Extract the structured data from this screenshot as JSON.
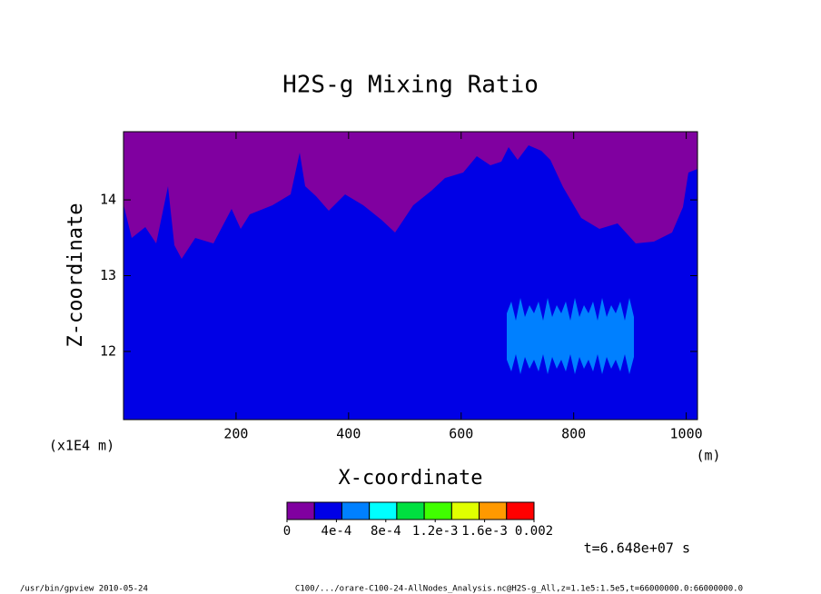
{
  "chart_data": {
    "type": "contour",
    "title": "H2S-g Mixing Ratio",
    "x_label": "X-coordinate",
    "y_label": "Z-coordinate",
    "x_unit": "(m)",
    "y_unit": "(x1E4 m)",
    "xlim": [
      0,
      1020
    ],
    "xticks": [
      200,
      400,
      600,
      800,
      1000
    ],
    "ylim": [
      11.1,
      14.9
    ],
    "yticks": [
      12,
      13,
      14
    ],
    "colorbar": {
      "lim": [
        0,
        0.002
      ],
      "colors": [
        "#8000a0",
        "#0000e6",
        "#0080ff",
        "#00ffff",
        "#00e040",
        "#40ff00",
        "#e0ff00",
        "#ff9900",
        "#ff0000",
        "#ff9999"
      ],
      "ticks": [
        0,
        {
          "value": 0.0004,
          "label": "4e-4"
        },
        {
          "value": 0.0008,
          "label": "8e-4"
        },
        {
          "value": 0.0012,
          "label": "1.2e-3"
        },
        {
          "value": 0.0016,
          "label": "1.6e-3"
        },
        0.002
      ]
    },
    "time_label": "t=6.648e+07 s",
    "footer_left": "/usr/bin/gpview  2010-05-24",
    "footer_right": "C100/.../orare-C100-24-AllNodes_Analysis.nc@H2S-g_All,z=1.1e5:1.5e5,t=66000000.0:66000000.0"
  }
}
